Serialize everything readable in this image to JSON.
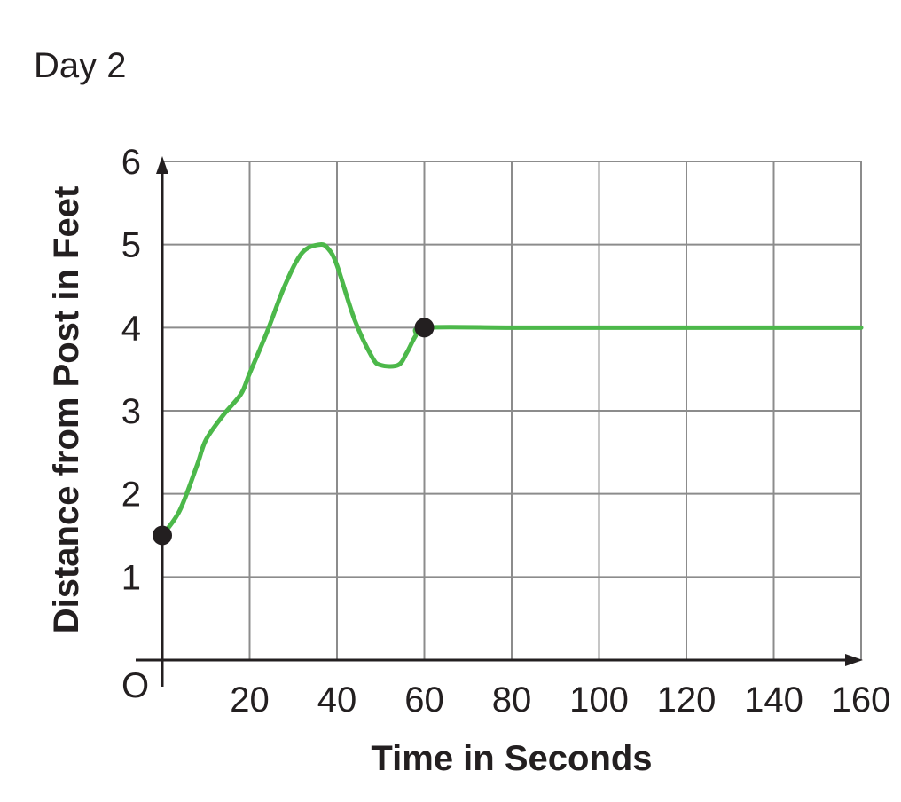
{
  "chart_data": {
    "type": "line",
    "title": "Day 2",
    "xlabel": "Time in Seconds",
    "ylabel": "Distance from Post in Feet",
    "origin_label": "O",
    "xlim": [
      0,
      160
    ],
    "ylim": [
      0,
      6
    ],
    "x_ticks": [
      20,
      40,
      60,
      80,
      100,
      120,
      140,
      160
    ],
    "y_ticks": [
      1,
      2,
      3,
      4,
      5,
      6
    ],
    "x_tick_labels": [
      "20",
      "40",
      "60",
      "80",
      "100",
      "120",
      "140",
      "160"
    ],
    "y_tick_labels": [
      "1",
      "2",
      "3",
      "4",
      "5",
      "6"
    ],
    "grid": true,
    "series": [
      {
        "color": "#4cb84a",
        "x": [
          0,
          4,
          8,
          10,
          14,
          18,
          20,
          24,
          28,
          32,
          36,
          38,
          40,
          44,
          48,
          50,
          54,
          56,
          58,
          60,
          80,
          100,
          120,
          140,
          160
        ],
        "y": [
          1.5,
          1.8,
          2.35,
          2.65,
          2.95,
          3.2,
          3.45,
          3.95,
          4.5,
          4.9,
          5.0,
          4.95,
          4.75,
          4.1,
          3.65,
          3.55,
          3.55,
          3.7,
          3.9,
          4.0,
          4.0,
          4.0,
          4.0,
          4.0,
          4.0
        ]
      }
    ],
    "points": [
      {
        "x": 0,
        "y": 1.5
      },
      {
        "x": 60,
        "y": 4.0
      }
    ],
    "point_color": "#231f20"
  }
}
